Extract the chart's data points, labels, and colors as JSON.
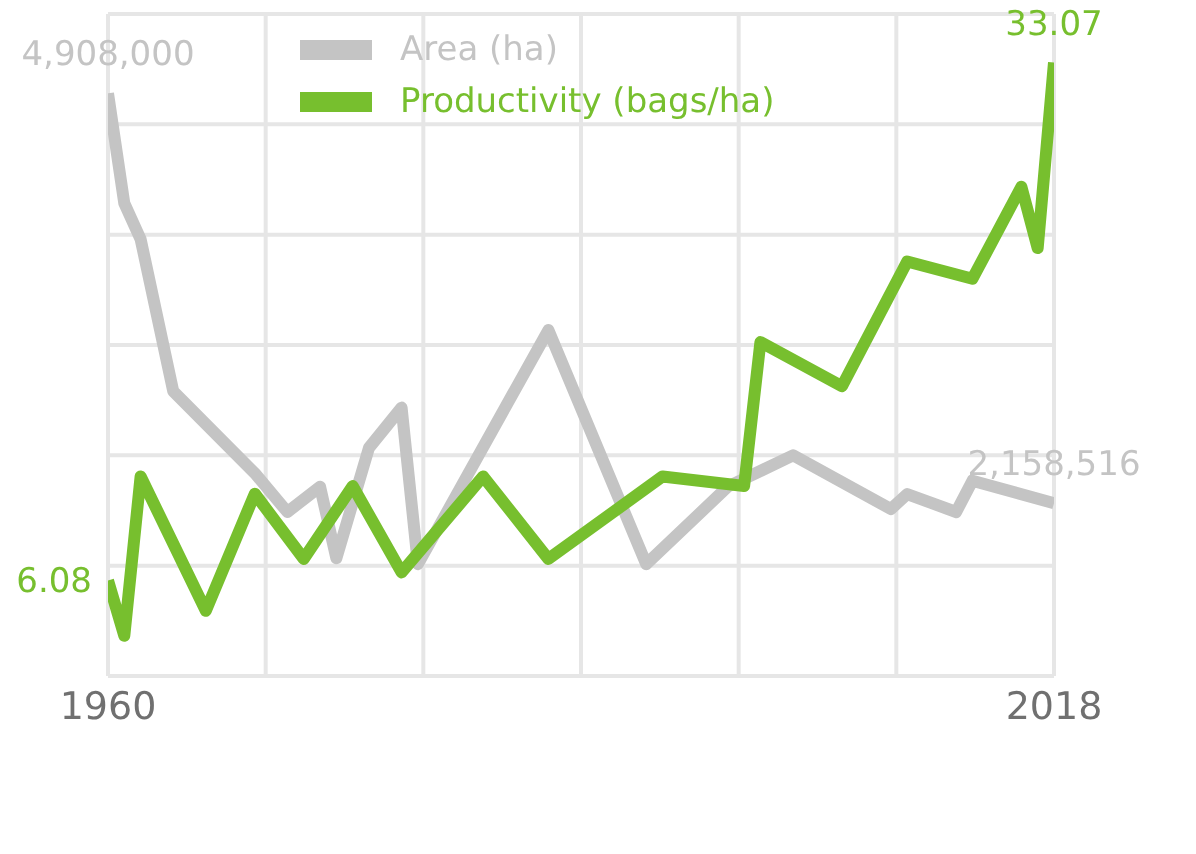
{
  "chart_data": {
    "type": "line",
    "xlim": [
      1960,
      2018
    ],
    "xticks": [
      1960,
      2018
    ],
    "ylim": [
      1000000,
      5440000
    ],
    "y2lim": [
      1.1,
      35.6
    ],
    "tick_labels": "x",
    "grid": true,
    "legend": "top",
    "line_style": "solid",
    "marker": "none",
    "series": [
      {
        "name": "Area (ha)",
        "color": "#c4c4c4",
        "axis": "y",
        "x": [
          1960,
          1961,
          1962,
          1964,
          1969,
          1971,
          1973,
          1974,
          1976,
          1978,
          1979,
          1987,
          1993,
          1998,
          2002,
          2008,
          2009,
          2012,
          2013,
          2018
        ],
        "values": [
          4908000,
          4170000,
          3930000,
          2910000,
          2360000,
          2100000,
          2270000,
          1790000,
          2530000,
          2800000,
          1750000,
          3320000,
          1750000,
          2270000,
          2480000,
          2120000,
          2220000,
          2100000,
          2310000,
          2158516
        ],
        "value_labels": [
          "4,908,000",
          null,
          null,
          null,
          null,
          null,
          null,
          null,
          null,
          null,
          null,
          null,
          null,
          null,
          null,
          null,
          null,
          null,
          null,
          "2,158,516"
        ]
      },
      {
        "name": "Productivity (bags/ha)",
        "color": "#77bf2e",
        "axis": "y2",
        "x": [
          1960,
          1961,
          1962,
          1966,
          1969,
          1972,
          1975,
          1978,
          1983,
          1987,
          1994,
          1999,
          2000,
          2005,
          2009,
          2013,
          2016,
          2017,
          2018
        ],
        "values": [
          6.08,
          3.2,
          11.5,
          4.5,
          10.6,
          7.2,
          11.0,
          6.5,
          11.5,
          7.2,
          11.5,
          11.0,
          18.5,
          16.2,
          22.7,
          21.8,
          26.6,
          23.4,
          33.07
        ],
        "value_labels": [
          "6.08",
          null,
          null,
          null,
          null,
          null,
          null,
          null,
          null,
          null,
          null,
          null,
          null,
          null,
          null,
          null,
          null,
          null,
          "33.07"
        ]
      }
    ]
  }
}
